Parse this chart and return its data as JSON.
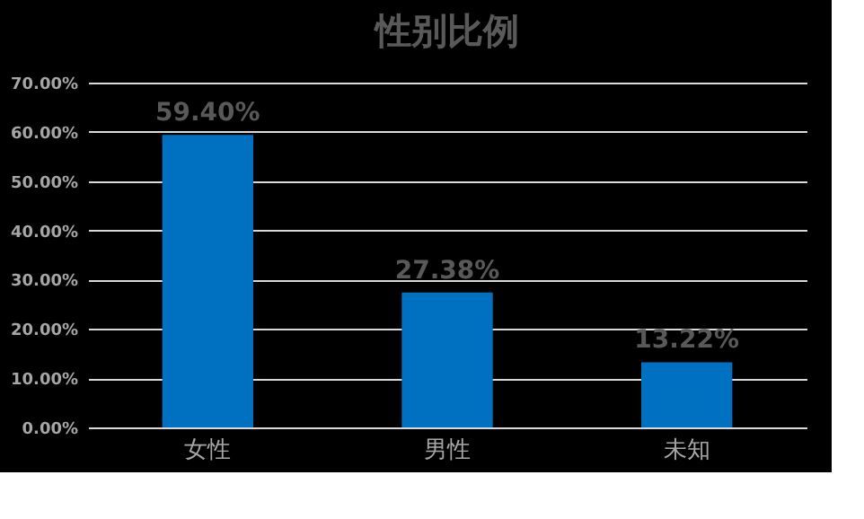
{
  "chart_data": {
    "type": "bar",
    "title": "性别比例",
    "categories": [
      "女性",
      "男性",
      "未知"
    ],
    "values": [
      59.4,
      27.38,
      13.22
    ],
    "value_labels": [
      "59.40%",
      "27.38%",
      "13.22%"
    ],
    "color": "#0070c0",
    "ylim": [
      0,
      70
    ],
    "yticks": [
      {
        "value": 0,
        "label": "0.00%"
      },
      {
        "value": 10,
        "label": "10.00%"
      },
      {
        "value": 20,
        "label": "20.00%"
      },
      {
        "value": 30,
        "label": "30.00%"
      },
      {
        "value": 40,
        "label": "40.00%"
      },
      {
        "value": 50,
        "label": "50.00%"
      },
      {
        "value": 60,
        "label": "60.00%"
      },
      {
        "value": 70,
        "label": "70.00%"
      }
    ],
    "grid": "y"
  }
}
